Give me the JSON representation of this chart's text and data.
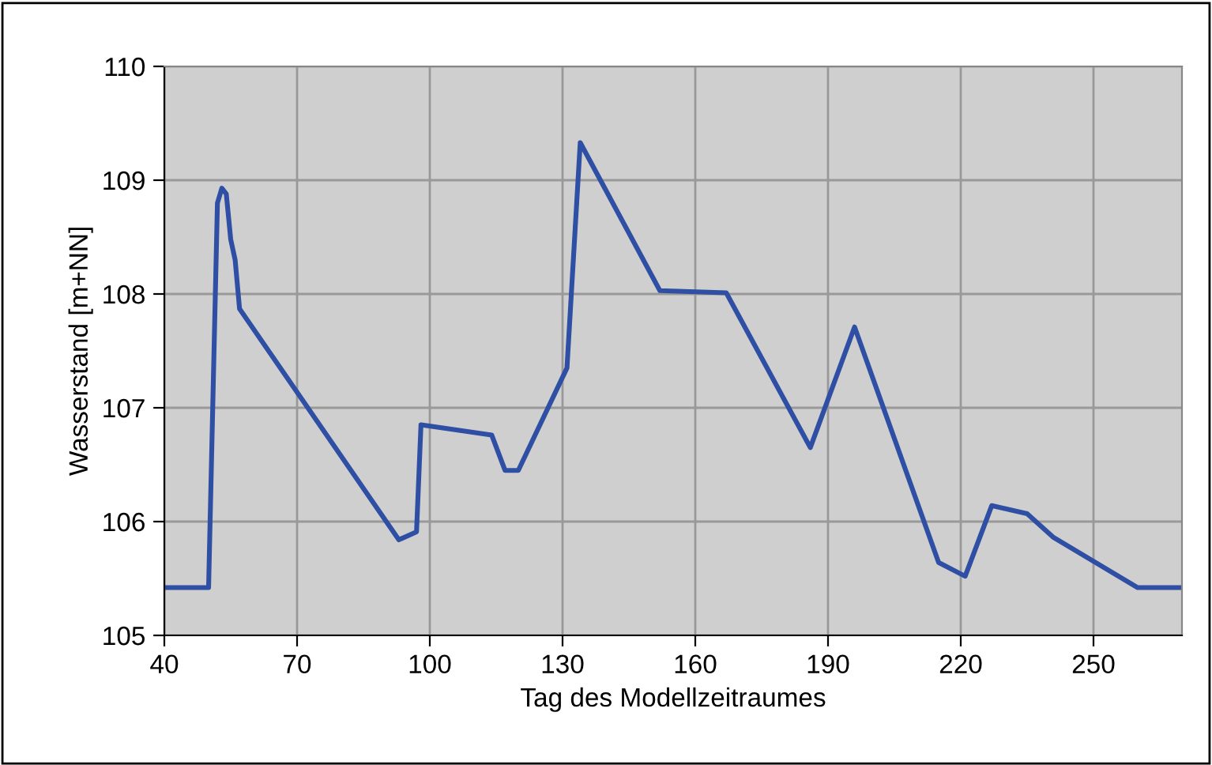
{
  "chart_data": {
    "type": "line",
    "xlabel": "Tag des Modellzeitraumes",
    "ylabel": "Wasserstand [m+NN]",
    "x": [
      40,
      50,
      52,
      53,
      54,
      55,
      56,
      57,
      93,
      97,
      98,
      114,
      117,
      120,
      131,
      134,
      152,
      167,
      186,
      196,
      215,
      221,
      227,
      235,
      241,
      260,
      270
    ],
    "series": [
      {
        "color": "#2e4fa3",
        "values": [
          105.42,
          105.42,
          108.8,
          108.93,
          108.88,
          108.48,
          108.3,
          107.87,
          105.84,
          105.91,
          106.85,
          106.76,
          106.45,
          106.45,
          107.35,
          109.33,
          108.03,
          108.01,
          106.65,
          107.71,
          105.64,
          105.52,
          106.14,
          106.07,
          105.86,
          105.42,
          105.42
        ]
      }
    ],
    "xlim": [
      40,
      270
    ],
    "xticks": [
      40,
      70,
      100,
      130,
      160,
      190,
      220,
      250
    ],
    "ylim": [
      105,
      110
    ],
    "yticks": [
      105,
      106,
      107,
      108,
      109,
      110
    ],
    "grid": true,
    "marker": "none",
    "line_style": "solid"
  }
}
